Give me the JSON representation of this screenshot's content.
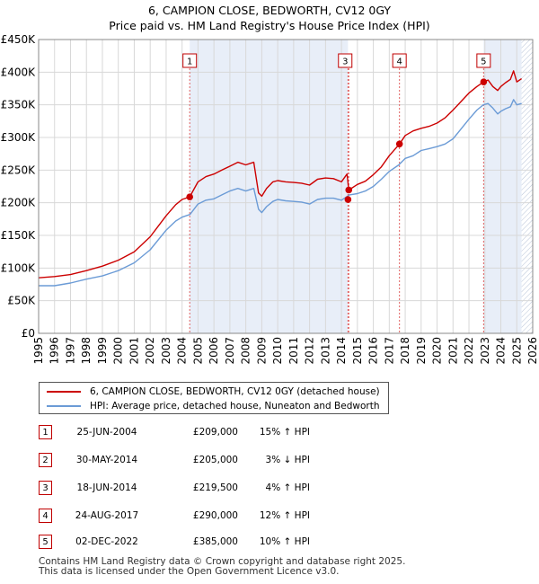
{
  "title_line1": "6, CAMPION CLOSE, BEDWORTH, CV12 0GY",
  "title_line2": "Price paid vs. HM Land Registry's House Price Index (HPI)",
  "colors": {
    "property": "#cc0000",
    "hpi": "#6b9bd6",
    "shade": "#e8eef8",
    "grid": "#d8d8d8",
    "marker_line": "#e06060"
  },
  "chart_data": {
    "type": "line",
    "xlim": [
      1995,
      2026
    ],
    "ylim": [
      0,
      450000
    ],
    "x_ticks": [
      "1995",
      "1996",
      "1997",
      "1998",
      "1999",
      "2000",
      "2001",
      "2002",
      "2003",
      "2004",
      "2005",
      "2006",
      "2007",
      "2008",
      "2009",
      "2010",
      "2011",
      "2012",
      "2013",
      "2014",
      "2015",
      "2016",
      "2017",
      "2018",
      "2019",
      "2020",
      "2021",
      "2022",
      "2023",
      "2024",
      "2025",
      "2026"
    ],
    "y_ticks": [
      {
        "value": 0,
        "label": "£0"
      },
      {
        "value": 50000,
        "label": "£50K"
      },
      {
        "value": 100000,
        "label": "£100K"
      },
      {
        "value": 150000,
        "label": "£150K"
      },
      {
        "value": 200000,
        "label": "£200K"
      },
      {
        "value": 250000,
        "label": "£250K"
      },
      {
        "value": 300000,
        "label": "£300K"
      },
      {
        "value": 350000,
        "label": "£350K"
      },
      {
        "value": 400000,
        "label": "£400K"
      },
      {
        "value": 450000,
        "label": "£450K"
      }
    ],
    "shaded_ranges": [
      [
        2004.48,
        2014.41
      ],
      [
        2022.92,
        2025.3
      ]
    ],
    "hatched_range": [
      2025.3,
      2026
    ],
    "series": [
      {
        "name": "6, CAMPION CLOSE, BEDWORTH, CV12 0GY (detached house)",
        "color": "#cc0000",
        "x": [
          1995.0,
          1996.0,
          1997.0,
          1998.0,
          1999.0,
          2000.0,
          2001.0,
          2002.0,
          2003.0,
          2003.6,
          2004.0,
          2004.48,
          2005.0,
          2005.5,
          2006.0,
          2006.5,
          2007.0,
          2007.5,
          2008.0,
          2008.5,
          2008.8,
          2009.0,
          2009.3,
          2009.7,
          2010.0,
          2010.5,
          2011.0,
          2011.5,
          2012.0,
          2012.5,
          2013.0,
          2013.5,
          2014.0,
          2014.35,
          2014.46,
          2015.0,
          2015.5,
          2016.0,
          2016.5,
          2017.0,
          2017.64,
          2018.0,
          2018.5,
          2019.0,
          2019.5,
          2020.0,
          2020.5,
          2021.0,
          2021.5,
          2022.0,
          2022.5,
          2022.92,
          2023.2,
          2023.5,
          2023.8,
          2024.0,
          2024.3,
          2024.6,
          2024.8,
          2025.0,
          2025.3
        ],
        "y": [
          85000,
          87000,
          90000,
          96000,
          103000,
          112000,
          125000,
          148000,
          180000,
          197000,
          205000,
          209000,
          232000,
          240000,
          244000,
          250000,
          256000,
          262000,
          258000,
          262000,
          215000,
          210000,
          222000,
          232000,
          234000,
          232000,
          231000,
          230000,
          227000,
          236000,
          238000,
          237000,
          232000,
          244000,
          219500,
          228000,
          233000,
          243000,
          255000,
          272000,
          290000,
          303000,
          310000,
          314000,
          317000,
          322000,
          330000,
          342000,
          355000,
          368000,
          378000,
          385000,
          388000,
          378000,
          372000,
          378000,
          384000,
          389000,
          402000,
          385000,
          390000
        ]
      },
      {
        "name": "HPI: Average price, detached house, Nuneaton and Bedworth",
        "color": "#6b9bd6",
        "x": [
          1995.0,
          1996.0,
          1997.0,
          1998.0,
          1999.0,
          2000.0,
          2001.0,
          2002.0,
          2003.0,
          2003.6,
          2004.0,
          2004.5,
          2005.0,
          2005.5,
          2006.0,
          2006.5,
          2007.0,
          2007.5,
          2008.0,
          2008.5,
          2008.8,
          2009.0,
          2009.3,
          2009.7,
          2010.0,
          2010.5,
          2011.0,
          2011.5,
          2012.0,
          2012.5,
          2013.0,
          2013.5,
          2014.0,
          2014.5,
          2015.0,
          2015.5,
          2016.0,
          2016.5,
          2017.0,
          2017.6,
          2018.0,
          2018.5,
          2019.0,
          2019.5,
          2020.0,
          2020.5,
          2021.0,
          2021.5,
          2022.0,
          2022.5,
          2022.9,
          2023.2,
          2023.5,
          2023.8,
          2024.0,
          2024.3,
          2024.6,
          2024.8,
          2025.0,
          2025.3
        ],
        "y": [
          73000,
          73000,
          77000,
          83000,
          88000,
          96000,
          108000,
          128000,
          158000,
          172000,
          178000,
          182000,
          198000,
          204000,
          206000,
          212000,
          218000,
          222000,
          218000,
          222000,
          190000,
          185000,
          194000,
          202000,
          205000,
          203000,
          202000,
          201000,
          198000,
          205000,
          207000,
          207000,
          204000,
          212000,
          214000,
          218000,
          225000,
          236000,
          248000,
          258000,
          268000,
          272000,
          280000,
          283000,
          286000,
          290000,
          298000,
          313000,
          328000,
          342000,
          350000,
          352000,
          345000,
          336000,
          340000,
          344000,
          347000,
          358000,
          350000,
          352000
        ]
      }
    ],
    "sales": [
      {
        "id": "1",
        "x": 2004.48,
        "y": 209000
      },
      {
        "id": "2",
        "x": 2014.41,
        "y": 205000
      },
      {
        "id": "3",
        "x": 2014.46,
        "y": 219500
      },
      {
        "id": "4",
        "x": 2017.64,
        "y": 290000
      },
      {
        "id": "5",
        "x": 2022.92,
        "y": 385000
      }
    ],
    "marker_labels": [
      {
        "id": "1",
        "x": 2004.48
      },
      {
        "id": "3",
        "x": 2014.46
      },
      {
        "id": "4",
        "x": 2017.64
      },
      {
        "id": "5",
        "x": 2022.92
      }
    ]
  },
  "legend": {
    "property_label": "6, CAMPION CLOSE, BEDWORTH, CV12 0GY (detached house)",
    "hpi_label": "HPI: Average price, detached house, Nuneaton and Bedworth"
  },
  "transactions": [
    {
      "id": "1",
      "date": "25-JUN-2004",
      "price": "£209,000",
      "hpi": "15% ↑ HPI"
    },
    {
      "id": "2",
      "date": "30-MAY-2014",
      "price": "£205,000",
      "hpi": "3% ↓ HPI"
    },
    {
      "id": "3",
      "date": "18-JUN-2014",
      "price": "£219,500",
      "hpi": "4% ↑ HPI"
    },
    {
      "id": "4",
      "date": "24-AUG-2017",
      "price": "£290,000",
      "hpi": "12% ↑ HPI"
    },
    {
      "id": "5",
      "date": "02-DEC-2022",
      "price": "£385,000",
      "hpi": "10% ↑ HPI"
    }
  ],
  "footer_line1": "Contains HM Land Registry data © Crown copyright and database right 2025.",
  "footer_line2": "This data is licensed under the Open Government Licence v3.0."
}
